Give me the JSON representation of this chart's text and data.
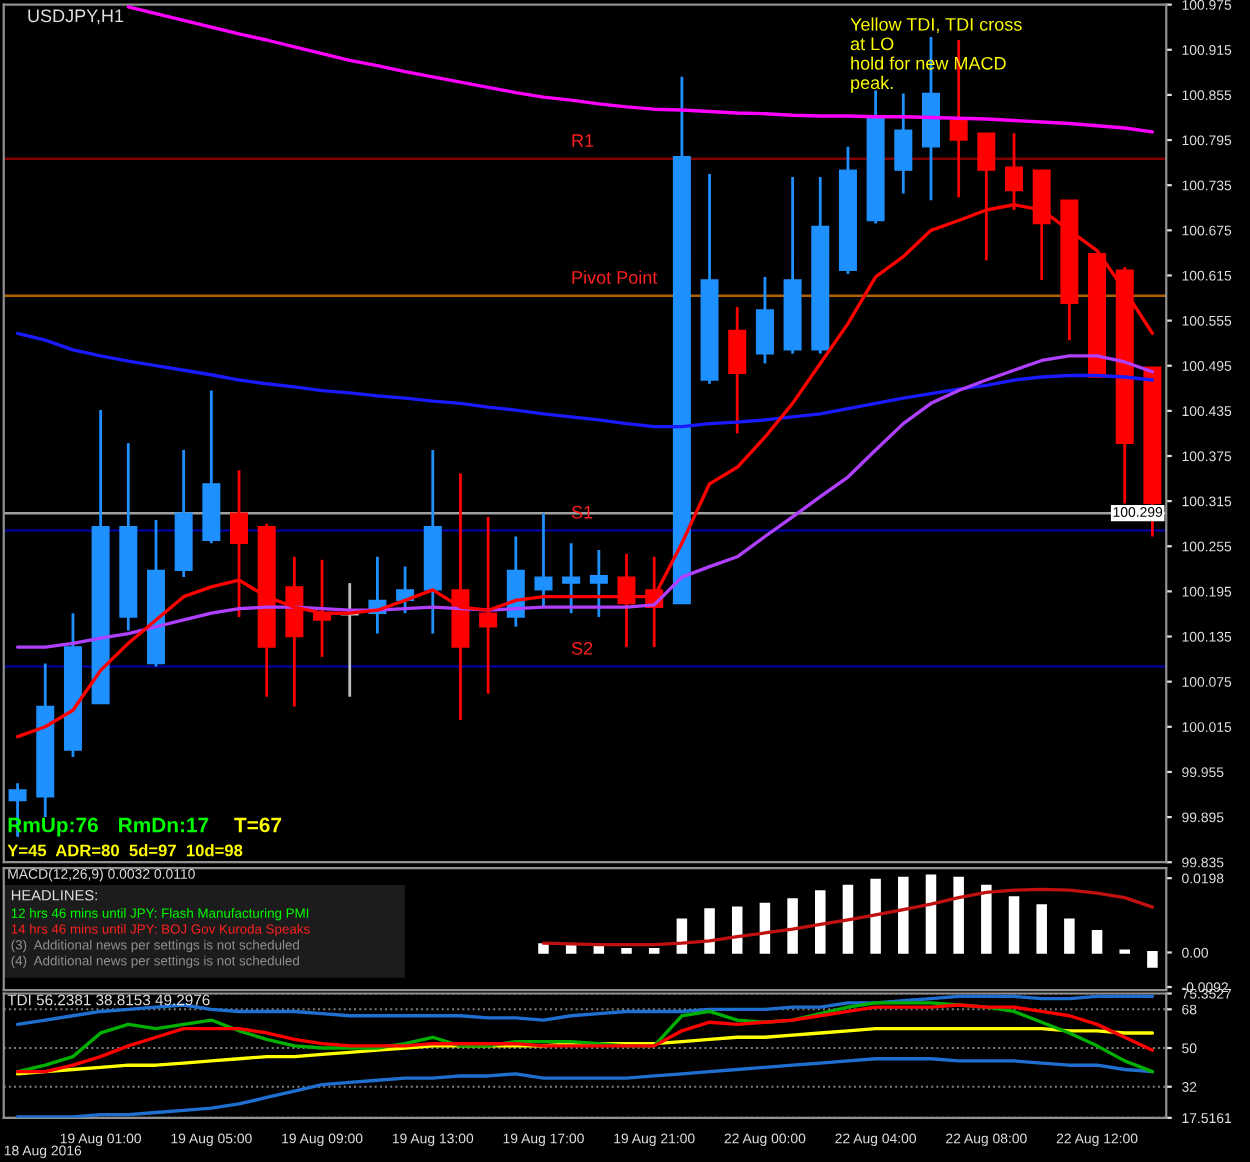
{
  "chart_data": [
    {
      "type": "candlestick",
      "title": "USDJPY,H1",
      "categories": [
        null,
        null,
        null,
        null,
        null,
        null,
        null,
        null,
        null,
        null,
        null,
        null,
        null,
        null,
        null,
        null,
        null,
        null,
        null,
        null,
        null,
        null,
        null,
        null,
        null,
        null,
        null,
        null,
        null,
        null,
        null,
        null,
        null,
        null,
        null,
        null,
        null,
        null,
        null,
        null,
        null,
        null
      ],
      "ohlc": [
        [
          99.917,
          99.94,
          99.869,
          99.931
        ],
        [
          99.922,
          100.099,
          99.895,
          100.042
        ],
        [
          99.984,
          100.166,
          99.975,
          100.121
        ],
        [
          100.046,
          100.436,
          100.046,
          100.281
        ],
        [
          100.161,
          100.392,
          100.143,
          100.281
        ],
        [
          100.099,
          100.29,
          100.095,
          100.223
        ],
        [
          100.223,
          100.383,
          100.214,
          100.299
        ],
        [
          100.263,
          100.462,
          100.259,
          100.338
        ],
        [
          100.299,
          100.356,
          100.161,
          100.259
        ],
        [
          100.281,
          100.285,
          100.055,
          100.121
        ],
        [
          100.201,
          100.241,
          100.042,
          100.135
        ],
        [
          100.166,
          100.237,
          100.108,
          100.157
        ],
        [
          100.166,
          100.206,
          100.055,
          100.164
        ],
        [
          100.166,
          100.241,
          100.139,
          100.183
        ],
        [
          100.183,
          100.228,
          100.166,
          100.197
        ],
        [
          100.197,
          100.383,
          100.139,
          100.281
        ],
        [
          100.197,
          100.352,
          100.024,
          100.121
        ],
        [
          100.166,
          100.294,
          100.059,
          100.148
        ],
        [
          100.161,
          100.268,
          100.148,
          100.223
        ],
        [
          100.197,
          100.299,
          100.174,
          100.214
        ],
        [
          100.206,
          100.259,
          100.166,
          100.214
        ],
        [
          100.206,
          100.25,
          100.161,
          100.216
        ],
        [
          100.214,
          100.245,
          100.121,
          100.179
        ],
        [
          100.197,
          100.241,
          100.121,
          100.174
        ],
        [
          100.179,
          100.879,
          100.179,
          100.773
        ],
        [
          100.476,
          100.75,
          100.471,
          100.609
        ],
        [
          100.542,
          100.573,
          100.405,
          100.485
        ],
        [
          100.511,
          100.613,
          100.498,
          100.569
        ],
        [
          100.516,
          100.746,
          100.511,
          100.609
        ],
        [
          100.516,
          100.746,
          100.511,
          100.68
        ],
        [
          100.622,
          100.786,
          100.617,
          100.755
        ],
        [
          100.688,
          100.861,
          100.684,
          100.826
        ],
        [
          100.755,
          100.857,
          100.724,
          100.808
        ],
        [
          100.786,
          100.932,
          100.715,
          100.857
        ],
        [
          100.821,
          100.928,
          100.719,
          100.795
        ],
        [
          100.804,
          100.804,
          100.635,
          100.755
        ],
        [
          100.759,
          100.804,
          100.702,
          100.728
        ],
        [
          100.755,
          100.755,
          100.609,
          100.684
        ],
        [
          100.715,
          100.715,
          100.529,
          100.578
        ],
        [
          100.644,
          100.644,
          100.48,
          100.48
        ],
        [
          100.622,
          100.626,
          100.312,
          100.392
        ],
        [
          100.493,
          100.493,
          100.268,
          100.312
        ]
      ],
      "colors": [
        "#1e90ff",
        "#1e90ff",
        "#1e90ff",
        "#1e90ff",
        "#1e90ff",
        "#1e90ff",
        "#1e90ff",
        "#1e90ff",
        "#ff0000",
        "#ff0000",
        "#ff0000",
        "#ff0000",
        "#c0c0c0",
        "#1e90ff",
        "#1e90ff",
        "#1e90ff",
        "#ff0000",
        "#ff0000",
        "#1e90ff",
        "#1e90ff",
        "#1e90ff",
        "#1e90ff",
        "#ff0000",
        "#ff0000",
        "#1e90ff",
        "#1e90ff",
        "#ff0000",
        "#1e90ff",
        "#1e90ff",
        "#1e90ff",
        "#1e90ff",
        "#1e90ff",
        "#1e90ff",
        "#1e90ff",
        "#ff0000",
        "#ff0000",
        "#ff0000",
        "#ff0000",
        "#ff0000",
        "#ff0000",
        "#ff0000",
        "#ff0000"
      ],
      "series": [
        {
          "type": "line",
          "color": "#ff00ff",
          "values": [
            null,
            null,
            null,
            null,
            100.972,
            100.963,
            100.954,
            100.945,
            100.936,
            100.928,
            100.919,
            100.91,
            100.901,
            100.894,
            100.886,
            100.879,
            100.872,
            100.865,
            100.858,
            100.852,
            100.848,
            100.843,
            100.839,
            100.836,
            100.835,
            100.833,
            100.831,
            100.83,
            100.828,
            100.827,
            100.827,
            100.826,
            100.826,
            100.825,
            100.824,
            100.823,
            100.821,
            100.819,
            100.817,
            100.814,
            100.811,
            100.806
          ]
        },
        {
          "type": "line",
          "color": "#1a1aff",
          "values": [
            100.538,
            100.529,
            100.516,
            100.508,
            100.501,
            100.495,
            100.489,
            100.483,
            100.476,
            100.471,
            100.467,
            100.462,
            100.459,
            100.455,
            100.452,
            100.448,
            100.445,
            100.44,
            100.436,
            100.431,
            100.427,
            100.423,
            100.418,
            100.414,
            100.414,
            100.418,
            100.42,
            100.423,
            100.427,
            100.431,
            100.438,
            100.445,
            100.452,
            100.458,
            100.464,
            100.469,
            100.476,
            100.48,
            100.482,
            100.482,
            100.48,
            100.476
          ]
        },
        {
          "type": "line",
          "color": "#b040ff",
          "values": [
            100.121,
            100.121,
            100.126,
            100.133,
            100.139,
            100.148,
            100.157,
            100.166,
            100.172,
            100.174,
            100.174,
            100.172,
            100.17,
            100.17,
            100.172,
            100.174,
            100.172,
            100.17,
            100.172,
            100.174,
            100.174,
            100.174,
            100.174,
            100.177,
            100.214,
            100.228,
            100.241,
            100.268,
            100.294,
            100.321,
            100.347,
            100.383,
            100.418,
            100.445,
            100.462,
            100.476,
            100.489,
            100.502,
            100.508,
            100.508,
            100.5,
            100.487
          ]
        },
        {
          "type": "line",
          "color": "#ff0000",
          "values": [
            100.002,
            100.015,
            100.037,
            100.09,
            100.126,
            100.157,
            100.188,
            100.201,
            100.21,
            100.188,
            100.174,
            100.166,
            100.166,
            100.17,
            100.183,
            100.197,
            100.174,
            100.17,
            100.183,
            100.188,
            100.188,
            100.188,
            100.188,
            100.188,
            100.259,
            100.338,
            100.36,
            100.4,
            100.445,
            100.498,
            100.551,
            100.613,
            100.64,
            100.675,
            100.688,
            100.702,
            100.709,
            100.702,
            100.675,
            100.648,
            100.595,
            100.538
          ]
        }
      ],
      "ylim": [
        99.835,
        100.975
      ],
      "yticks": [
        100.975,
        100.915,
        100.855,
        100.795,
        100.735,
        100.675,
        100.615,
        100.555,
        100.495,
        100.435,
        100.375,
        100.315,
        100.255,
        100.195,
        100.135,
        100.075,
        100.015,
        99.955,
        99.895,
        99.835
      ],
      "ref_lines": [
        {
          "axis": "y",
          "value": 100.299,
          "label": "100.299",
          "color": "#a0a0a0"
        },
        {
          "axis": "y",
          "value": 100.77,
          "label": "R1",
          "color": "#800000"
        },
        {
          "axis": "y",
          "value": 100.588,
          "label": "Pivot Point",
          "color": "#b06000"
        },
        {
          "axis": "y",
          "value": 100.276,
          "label": "S1",
          "color": "#000090"
        },
        {
          "axis": "y",
          "value": 100.095,
          "label": "S2",
          "color": "#000090"
        }
      ],
      "annotations": [
        "Yellow TDI, TDI cross\nat LO\nhold for new MACD\npeak.",
        "RmUp:76",
        "RmDn:17",
        "T=67",
        "Y=45  ADR=80  5d=97  10d=98"
      ],
      "tick_labels": "y"
    },
    {
      "type": "bar",
      "categories": [
        null,
        null,
        null,
        null,
        null,
        null,
        null,
        null,
        null,
        null,
        null,
        null,
        null,
        null,
        null,
        null,
        null,
        null,
        null,
        null,
        null,
        null,
        null,
        null,
        null,
        null,
        null,
        null,
        null,
        null,
        null,
        null,
        null,
        null,
        null,
        null,
        null,
        null,
        null,
        null,
        null,
        null
      ],
      "series": [
        {
          "type": "bar",
          "color": "#ffffff",
          "values": [
            null,
            null,
            null,
            null,
            null,
            null,
            null,
            null,
            null,
            null,
            null,
            null,
            null,
            null,
            null,
            null,
            null,
            null,
            null,
            0.0021,
            0.0021,
            0.0021,
            0.0008,
            0.0008,
            0.0087,
            0.0114,
            0.0119,
            0.0129,
            0.0141,
            0.0162,
            0.0177,
            0.0193,
            0.0198,
            0.0204,
            0.0198,
            0.0177,
            0.0146,
            0.0125,
            0.0087,
            0.0056,
            0.0004,
            -0.0037
          ]
        },
        {
          "type": "line",
          "color": "#c01010",
          "values": [
            null,
            null,
            null,
            null,
            null,
            null,
            null,
            null,
            null,
            null,
            null,
            null,
            null,
            null,
            null,
            null,
            null,
            null,
            null,
            0.0025,
            0.0023,
            0.0021,
            0.0021,
            0.0021,
            0.0025,
            0.0031,
            0.0042,
            0.0052,
            0.0062,
            0.0075,
            0.0087,
            0.01,
            0.0114,
            0.0129,
            0.0146,
            0.016,
            0.0166,
            0.0168,
            0.0166,
            0.0158,
            0.0146,
            0.0121
          ]
        }
      ],
      "ylim": [
        -0.01,
        0.0225
      ],
      "yticks": [
        0.0198,
        {
          "value": 0,
          "label": "0.00"
        },
        {
          "value": -0.0092,
          "label": "-0.0092"
        }
      ],
      "annotations": [
        "MACD(12,26,9) 0.0032 0.0110",
        "HEADLINES:",
        "12 hrs 46 mins until JPY: Flash Manufacturing PMI",
        "14 hrs 46 mins until JPY: BOJ Gov Kuroda Speaks",
        "(3)  Additional news per settings is not scheduled",
        "(4)  Additional news per settings is not scheduled"
      ],
      "tick_labels": "y"
    },
    {
      "type": "line",
      "categories": [
        null,
        null,
        null,
        "19 Aug 01:00",
        null,
        null,
        null,
        "19 Aug 05:00",
        null,
        null,
        null,
        "19 Aug 09:00",
        null,
        null,
        null,
        "19 Aug 13:00",
        null,
        null,
        null,
        "19 Aug 17:00",
        null,
        null,
        null,
        "19 Aug 21:00",
        null,
        null,
        null,
        "22 Aug 00:00",
        null,
        null,
        null,
        "22 Aug 04:00",
        null,
        null,
        null,
        "22 Aug 08:00",
        null,
        null,
        null,
        "22 Aug 12:00",
        null,
        null
      ],
      "series": [
        {
          "color": "#1e6fd0",
          "values": [
            61,
            63,
            65,
            67,
            68,
            69,
            70,
            68,
            67,
            67,
            67,
            66,
            65,
            65,
            65,
            65,
            65,
            64,
            64,
            63,
            65,
            66,
            67,
            67,
            67,
            68,
            68,
            68,
            69,
            69,
            71,
            71,
            72,
            73,
            74,
            74,
            74,
            73,
            73,
            74,
            74,
            74
          ]
        },
        {
          "color": "#1e6fd0",
          "values": [
            18,
            18,
            18,
            19,
            19,
            20,
            21,
            22,
            24,
            27,
            30,
            33,
            34,
            35,
            36,
            36,
            37,
            37,
            38,
            36,
            36,
            36,
            36,
            37,
            38,
            39,
            40,
            41,
            42,
            43,
            44,
            45,
            45,
            45,
            44,
            44,
            44,
            43,
            42,
            42,
            40,
            39
          ]
        },
        {
          "color": "#ffff00",
          "values": [
            38,
            39,
            40,
            41,
            42,
            42,
            43,
            44,
            45,
            46,
            46,
            47,
            48,
            49,
            50,
            51,
            51,
            51,
            51,
            51,
            52,
            52,
            52,
            52,
            53,
            54,
            55,
            55,
            56,
            57,
            58,
            59,
            59,
            59,
            59,
            59,
            59,
            59,
            58,
            58,
            57,
            57
          ]
        },
        {
          "color": "#00b000",
          "values": [
            39,
            42,
            46,
            57,
            61,
            59,
            61,
            63,
            58,
            54,
            51,
            50,
            50,
            50,
            52,
            55,
            51,
            51,
            53,
            53,
            53,
            52,
            51,
            51,
            65,
            67,
            63,
            62,
            63,
            66,
            69,
            71,
            71,
            71,
            70,
            69,
            67,
            62,
            57,
            51,
            44,
            39
          ]
        },
        {
          "color": "#ff0000",
          "values": [
            39,
            39,
            42,
            46,
            51,
            55,
            59,
            59,
            59,
            57,
            54,
            52,
            51,
            51,
            51,
            52,
            52,
            52,
            52,
            51,
            51,
            51,
            51,
            51,
            58,
            62,
            61,
            62,
            63,
            65,
            67,
            69,
            69,
            69,
            70,
            69,
            69,
            67,
            65,
            61,
            55,
            49
          ]
        }
      ],
      "ylim": [
        17.5161,
        75.3527
      ],
      "yticks": [
        75.3527,
        68,
        50,
        32,
        17.5161
      ],
      "grid": "y",
      "annotations": [
        "TDI 56.2381 38.8153 49.2976",
        "18 Aug 2016"
      ]
    }
  ]
}
